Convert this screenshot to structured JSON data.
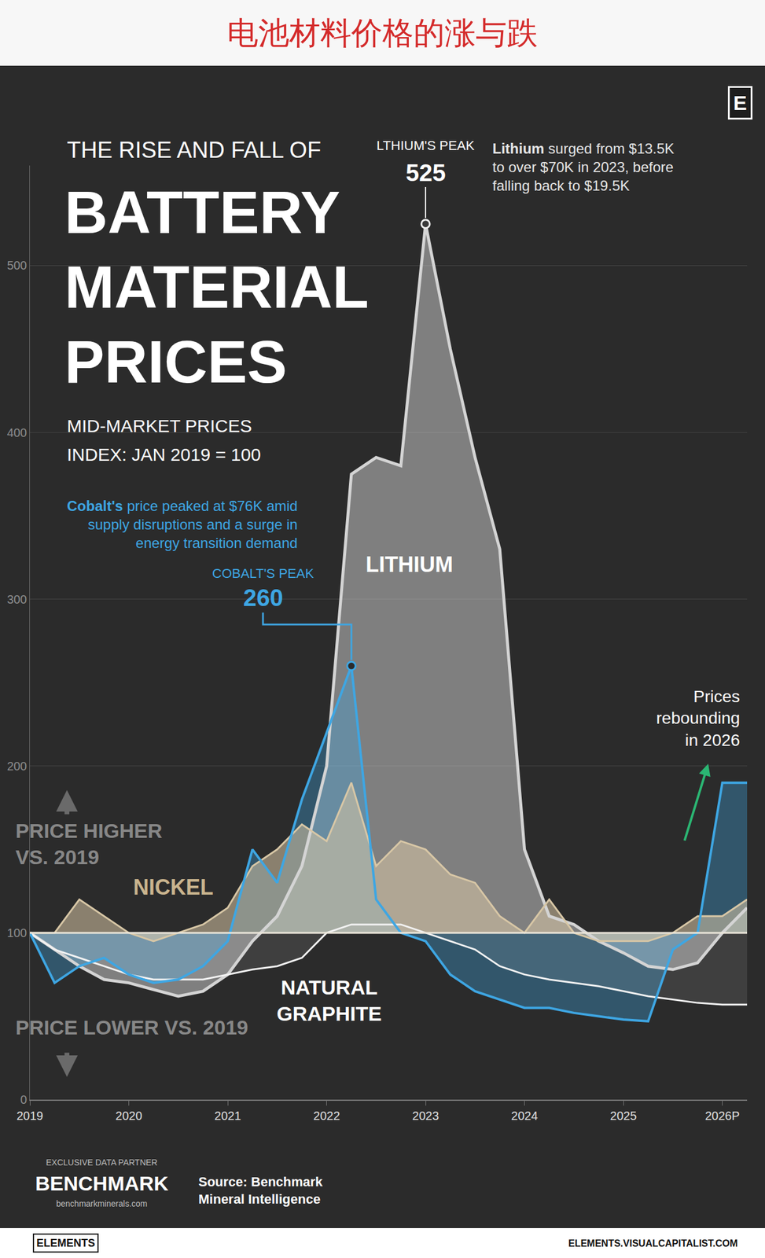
{
  "header": "电池材料价格的涨与跌",
  "chart_data": {
    "type": "line",
    "supertitle": "THE RISE AND FALL OF",
    "title": "BATTERY MATERIAL PRICES",
    "subtitle": [
      "MID-MARKET PRICES",
      "INDEX: JAN 2019 = 100"
    ],
    "x": [
      2019,
      2019.25,
      2019.5,
      2019.75,
      2020,
      2020.25,
      2020.5,
      2020.75,
      2021,
      2021.25,
      2021.5,
      2021.75,
      2022,
      2022.25,
      2022.5,
      2022.75,
      2023,
      2023.25,
      2023.5,
      2023.75,
      2024,
      2024.25,
      2024.5,
      2024.75,
      2025,
      2025.25,
      2025.5,
      2025.75,
      2026,
      2026.25
    ],
    "xlim": [
      2019,
      2026.25
    ],
    "xticks": [
      2019,
      2020,
      2021,
      2022,
      2023,
      2024,
      2025,
      {
        "value": 2026,
        "label": "2026P"
      }
    ],
    "ylim": [
      0,
      560
    ],
    "yticks": [
      0,
      100,
      200,
      300,
      400,
      500
    ],
    "grid": true,
    "baseline": 100,
    "series": [
      {
        "name": "LITHIUM",
        "color": "#d4d4d4",
        "values": [
          100,
          90,
          80,
          72,
          70,
          66,
          62,
          65,
          75,
          95,
          110,
          140,
          200,
          375,
          385,
          380,
          525,
          450,
          385,
          330,
          150,
          110,
          105,
          95,
          88,
          80,
          78,
          82,
          100,
          115
        ]
      },
      {
        "color": "#3ea6e3",
        "values": [
          100,
          70,
          80,
          85,
          75,
          70,
          72,
          80,
          95,
          150,
          130,
          180,
          220,
          260,
          120,
          100,
          95,
          75,
          65,
          60,
          55,
          55,
          52,
          50,
          48,
          47,
          90,
          100,
          190,
          190
        ]
      },
      {
        "name": "NICKEL",
        "color": "#d8c7a6",
        "values": [
          100,
          100,
          120,
          110,
          100,
          95,
          100,
          105,
          115,
          140,
          150,
          165,
          155,
          190,
          140,
          155,
          150,
          135,
          130,
          110,
          100,
          120,
          100,
          95,
          95,
          95,
          100,
          110,
          110,
          120
        ]
      },
      {
        "name": "NATURAL GRAPHITE",
        "color": "#f2f2f2",
        "values": [
          100,
          90,
          85,
          80,
          75,
          72,
          72,
          72,
          75,
          78,
          80,
          85,
          100,
          105,
          105,
          105,
          100,
          95,
          90,
          80,
          75,
          72,
          70,
          68,
          65,
          62,
          60,
          58,
          57,
          57
        ]
      }
    ],
    "annotations": {
      "lithium_peak": {
        "label": "LTHIUM'S PEAK",
        "value": 525
      },
      "lithium_note": "Lithium surged from $13.5K to over $70K in 2023, before falling back to $19.5K",
      "cobalt_peak": {
        "label": "COBALT'S PEAK",
        "value": 260
      },
      "cobalt_note": "Cobalt's price peaked at $76K amid supply disruptions and a surge in energy transition demand",
      "rebound_note": "Prices rebounding in 2026",
      "higher_label": "PRICE HIGHER VS. 2019",
      "lower_label": "PRICE LOWER VS. 2019"
    }
  },
  "footer": {
    "logo": "E",
    "partner_caption": "EXCLUSIVE DATA PARTNER",
    "partner": "BENCHMARK",
    "partner_url": "benchmarkminerals.com",
    "source": "Source: Benchmark Mineral Intelligence",
    "brand": "ELEMENTS",
    "site": "ELEMENTS.VISUALCAPITALIST.COM"
  }
}
